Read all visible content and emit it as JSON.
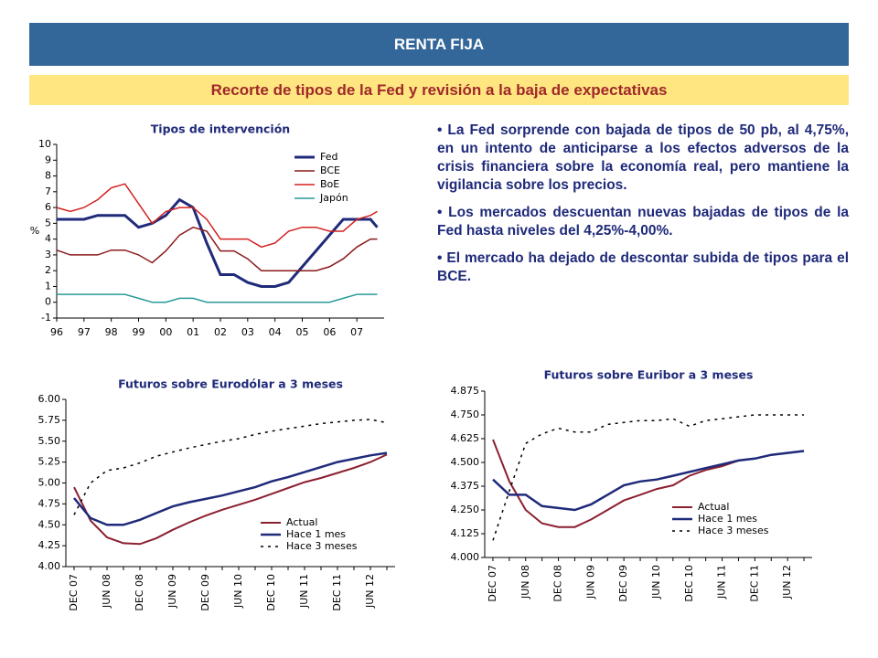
{
  "header": {
    "title": "RENTA FIJA",
    "subtitle": "Recorte de tipos de la Fed y revisión a la baja de expectativas"
  },
  "bullets": [
    "La Fed sorprende con bajada de tipos de 50 pb, al 4,75%, en un intento de anticiparse a los efectos adversos de la crisis financiera sobre la economía real, pero mantiene la vigilancia sobre los precios.",
    "Los mercados descuentan nuevas bajadas de tipos de la Fed hasta niveles del 4,25%-4,00%.",
    "El mercado ha dejado de descontar subida de tipos para el BCE."
  ],
  "chart_data": [
    {
      "type": "line",
      "title": "Tipos de intervención",
      "ylabel": "%",
      "x": [
        1996,
        1996.5,
        1997,
        1997.5,
        1998,
        1998.5,
        1999,
        1999.5,
        2000,
        2000.5,
        2001,
        2001.5,
        2002,
        2002.5,
        2003,
        2003.5,
        2004,
        2004.5,
        2005,
        2005.5,
        2006,
        2006.5,
        2007,
        2007.5,
        2007.75
      ],
      "xlim": [
        1996,
        2008
      ],
      "xticks": [
        {
          "value": 1996,
          "label": "96"
        },
        {
          "value": 1997,
          "label": "97"
        },
        {
          "value": 1998,
          "label": "98"
        },
        {
          "value": 1999,
          "label": "99"
        },
        {
          "value": 2000,
          "label": "00"
        },
        {
          "value": 2001,
          "label": "01"
        },
        {
          "value": 2002,
          "label": "02"
        },
        {
          "value": 2003,
          "label": "03"
        },
        {
          "value": 2004,
          "label": "04"
        },
        {
          "value": 2005,
          "label": "05"
        },
        {
          "value": 2006,
          "label": "06"
        },
        {
          "value": 2007,
          "label": "07"
        }
      ],
      "ylim": [
        -1,
        10
      ],
      "yticks": [
        -1,
        0,
        1,
        2,
        3,
        4,
        5,
        6,
        7,
        8,
        9,
        10
      ],
      "legend": "upper right",
      "grid": false,
      "series": [
        {
          "name": "Fed",
          "color": "#1f2a7a",
          "width": 3,
          "values": [
            5.25,
            5.25,
            5.25,
            5.5,
            5.5,
            5.5,
            4.75,
            5.0,
            5.5,
            6.5,
            6.0,
            3.75,
            1.75,
            1.75,
            1.25,
            1.0,
            1.0,
            1.25,
            2.25,
            3.25,
            4.25,
            5.25,
            5.25,
            5.25,
            4.75
          ]
        },
        {
          "name": "BCE",
          "color": "#8b1a1a",
          "width": 1.5,
          "values": [
            3.3,
            3.0,
            3.0,
            3.0,
            3.3,
            3.3,
            3.0,
            2.5,
            3.25,
            4.25,
            4.75,
            4.5,
            3.25,
            3.25,
            2.75,
            2.0,
            2.0,
            2.0,
            2.0,
            2.0,
            2.25,
            2.75,
            3.5,
            4.0,
            4.0
          ]
        },
        {
          "name": "BoE",
          "color": "#d42020",
          "width": 1.5,
          "values": [
            6.0,
            5.75,
            6.0,
            6.5,
            7.25,
            7.5,
            6.25,
            5.0,
            5.75,
            6.0,
            6.0,
            5.25,
            4.0,
            4.0,
            4.0,
            3.5,
            3.75,
            4.5,
            4.75,
            4.75,
            4.5,
            4.5,
            5.25,
            5.5,
            5.75
          ]
        },
        {
          "name": "Japón",
          "color": "#2a9a9a",
          "width": 1.5,
          "values": [
            0.5,
            0.5,
            0.5,
            0.5,
            0.5,
            0.5,
            0.25,
            0.0,
            0.0,
            0.25,
            0.25,
            0.0,
            0.0,
            0.0,
            0.0,
            0.0,
            0.0,
            0.0,
            0.0,
            0.0,
            0.0,
            0.25,
            0.5,
            0.5,
            0.5
          ]
        }
      ]
    },
    {
      "type": "line",
      "title": "Futuros sobre Eurodólar a 3 meses",
      "categories": [
        "DEC 07",
        null,
        "JUN 08",
        null,
        "DEC 08",
        null,
        "JUN 09",
        null,
        "DEC 09",
        null,
        "JUN 10",
        null,
        "DEC 10",
        null,
        "JUN 11",
        null,
        "DEC 11",
        null,
        "JUN 12",
        null
      ],
      "ylim": [
        4.0,
        6.0
      ],
      "yticks": [
        {
          "value": 4.0,
          "label": "4.00"
        },
        {
          "value": 4.25,
          "label": "4.25"
        },
        {
          "value": 4.5,
          "label": "4.50"
        },
        {
          "value": 4.75,
          "label": "4.75"
        },
        {
          "value": 5.0,
          "label": "5.00"
        },
        {
          "value": 5.25,
          "label": "5.25"
        },
        {
          "value": 5.5,
          "label": "5.50"
        },
        {
          "value": 5.75,
          "label": "5.75"
        },
        {
          "value": 6.0,
          "label": "6.00"
        }
      ],
      "legend": "lower right",
      "grid": false,
      "series": [
        {
          "name": "Actual",
          "color": "#8b2030",
          "width": 2,
          "values": [
            4.95,
            4.55,
            4.35,
            4.28,
            4.27,
            4.34,
            4.44,
            4.53,
            4.61,
            4.68,
            4.74,
            4.8,
            4.87,
            4.94,
            5.01,
            5.06,
            5.12,
            5.18,
            5.25,
            5.34
          ]
        },
        {
          "name": "Hace 1 mes",
          "color": "#1f2a7a",
          "width": 2.5,
          "values": [
            4.82,
            4.58,
            4.5,
            4.5,
            4.56,
            4.64,
            4.72,
            4.77,
            4.81,
            4.85,
            4.9,
            4.95,
            5.02,
            5.07,
            5.13,
            5.19,
            5.25,
            5.29,
            5.33,
            5.36
          ]
        },
        {
          "name": "Hace 3 meses",
          "color": "#000000",
          "width": 1.5,
          "dashed": true,
          "values": [
            4.62,
            5.0,
            5.15,
            5.18,
            5.24,
            5.32,
            5.37,
            5.42,
            5.46,
            5.5,
            5.53,
            5.58,
            5.62,
            5.65,
            5.68,
            5.71,
            5.73,
            5.75,
            5.76,
            5.72
          ]
        }
      ]
    },
    {
      "type": "line",
      "title": "Futuros sobre Euribor a 3 meses",
      "categories": [
        "DEC 07",
        null,
        "JUN 08",
        null,
        "DEC 08",
        null,
        "JUN 09",
        null,
        "DEC 09",
        null,
        "JUN 10",
        null,
        "DEC 10",
        null,
        "JUN 11",
        null,
        "DEC 11",
        null,
        "JUN 12",
        null
      ],
      "ylim": [
        4.0,
        4.875
      ],
      "yticks": [
        {
          "value": 4.0,
          "label": "4.000"
        },
        4.125,
        {
          "value": 4.25,
          "label": "4.250"
        },
        4.375,
        {
          "value": 4.5,
          "label": "4.500"
        },
        4.625,
        {
          "value": 4.75,
          "label": "4.750"
        },
        4.875
      ],
      "legend": "lower right",
      "grid": false,
      "series": [
        {
          "name": "Actual",
          "color": "#8b2030",
          "width": 2,
          "values": [
            4.62,
            4.4,
            4.25,
            4.18,
            4.16,
            4.16,
            4.2,
            4.25,
            4.3,
            4.33,
            4.36,
            4.38,
            4.43,
            4.46,
            4.48,
            4.51,
            4.52,
            4.54,
            4.55,
            4.56
          ]
        },
        {
          "name": "Hace 1 mes",
          "color": "#1f2a7a",
          "width": 2.5,
          "values": [
            4.41,
            4.33,
            4.33,
            4.27,
            4.26,
            4.25,
            4.28,
            4.33,
            4.38,
            4.4,
            4.41,
            4.43,
            4.45,
            4.47,
            4.49,
            4.51,
            4.52,
            4.54,
            4.55,
            4.56
          ]
        },
        {
          "name": "Hace 3 meses",
          "color": "#000000",
          "width": 1.5,
          "dashed": true,
          "values": [
            4.09,
            4.35,
            4.6,
            4.65,
            4.68,
            4.66,
            4.66,
            4.7,
            4.71,
            4.72,
            4.72,
            4.73,
            4.69,
            4.72,
            4.73,
            4.74,
            4.75,
            4.75,
            4.75,
            4.75
          ]
        }
      ]
    }
  ]
}
